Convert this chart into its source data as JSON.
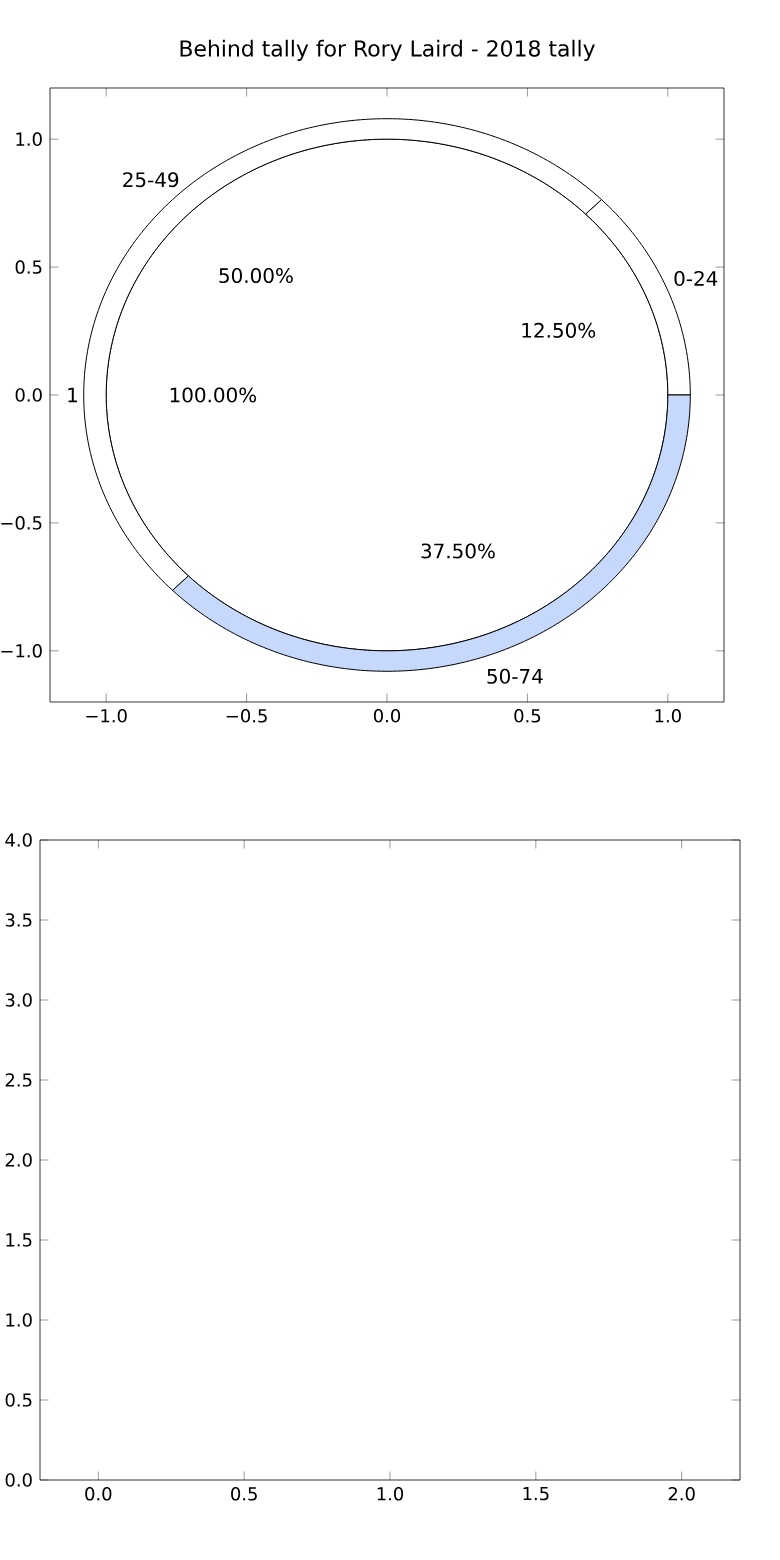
{
  "chart_data": [
    {
      "type": "pie",
      "categories": [
        "1"
      ],
      "values": [
        100
      ],
      "colors": [
        "#ffffff"
      ],
      "value_labels": [
        "100.00%"
      ]
    },
    {
      "type": "donut",
      "title": "Behind tally for Rory Laird - 2018 tally",
      "categories": [
        "0-24",
        "25-49",
        "50-74"
      ],
      "values": [
        12.5,
        50,
        37.5
      ],
      "colors": [
        "#ffffff",
        "#ffffff",
        "#c6d9fd"
      ],
      "value_labels": [
        "12.50%",
        "50.00%",
        "37.50%"
      ]
    },
    {
      "type": "scatter",
      "xlim": [
        -1.2,
        1.2
      ],
      "ylim": [
        -1.2,
        1.2
      ],
      "xticks": [
        {
          "value": -1,
          "label": "−1.0"
        },
        {
          "value": -0.5,
          "label": "−0.5"
        },
        {
          "value": 0,
          "label": "0.0"
        },
        {
          "value": 0.5,
          "label": "0.5"
        },
        {
          "value": 1,
          "label": "1.0"
        }
      ],
      "yticks": [
        {
          "value": -1,
          "label": "−1.0"
        },
        {
          "value": -0.5,
          "label": "−0.5"
        },
        {
          "value": 0,
          "label": "0.0"
        },
        {
          "value": 0.5,
          "label": "0.5"
        },
        {
          "value": 1,
          "label": "1.0"
        }
      ]
    },
    {
      "type": "scatter",
      "xlim": [
        -0.2,
        2.2
      ],
      "ylim": [
        0,
        4
      ],
      "xticks": [
        {
          "value": 0,
          "label": "0.0"
        },
        {
          "value": 0.5,
          "label": "0.5"
        },
        {
          "value": 1,
          "label": "1.0"
        },
        {
          "value": 1.5,
          "label": "1.5"
        },
        {
          "value": 2,
          "label": "2.0"
        }
      ],
      "yticks": [
        {
          "value": 0,
          "label": "0.0"
        },
        {
          "value": 0.5,
          "label": "0.5"
        },
        {
          "value": 1,
          "label": "1.0"
        },
        {
          "value": 1.5,
          "label": "1.5"
        },
        {
          "value": 2,
          "label": "2.0"
        },
        {
          "value": 2.5,
          "label": "2.5"
        },
        {
          "value": 3,
          "label": "3.0"
        },
        {
          "value": 3.5,
          "label": "3.5"
        },
        {
          "value": 4,
          "label": "4.0"
        }
      ]
    }
  ]
}
